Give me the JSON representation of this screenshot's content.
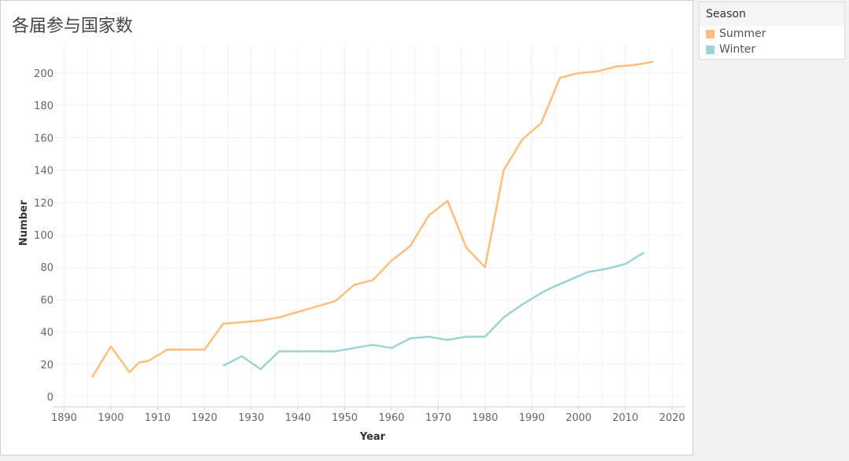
{
  "chart_data": {
    "type": "line",
    "title": "各届参与国家数",
    "xlabel": "Year",
    "ylabel": "Number",
    "xlim": [
      1886,
      2024
    ],
    "ylim": [
      -5,
      215
    ],
    "xticks": [
      1890,
      1900,
      1910,
      1920,
      1930,
      1940,
      1950,
      1960,
      1970,
      1980,
      1990,
      2000,
      2010,
      2020
    ],
    "yticks": [
      0,
      20,
      40,
      60,
      80,
      100,
      120,
      140,
      160,
      180,
      200
    ],
    "grid": true,
    "legend": {
      "title": "Season",
      "placement": "right"
    },
    "series": [
      {
        "name": "Summer",
        "color": "#ffbe7d",
        "x": [
          1896,
          1900,
          1904,
          1906,
          1908,
          1912,
          1920,
          1924,
          1928,
          1932,
          1936,
          1948,
          1952,
          1956,
          1960,
          1964,
          1968,
          1972,
          1976,
          1980,
          1984,
          1988,
          1992,
          1996,
          2000,
          2004,
          2008,
          2012,
          2016
        ],
        "y": [
          12,
          31,
          15,
          21,
          22,
          29,
          29,
          45,
          46,
          47,
          49,
          59,
          69,
          72,
          84,
          93,
          112,
          121,
          92,
          80,
          140,
          159,
          169,
          197,
          200,
          201,
          204,
          205,
          207
        ]
      },
      {
        "name": "Winter",
        "color": "#9dd3d3",
        "x": [
          1924,
          1928,
          1932,
          1936,
          1948,
          1952,
          1956,
          1960,
          1964,
          1968,
          1972,
          1976,
          1980,
          1984,
          1988,
          1992,
          1994,
          1998,
          2002,
          2006,
          2010,
          2014
        ],
        "y": [
          19,
          25,
          17,
          28,
          28,
          30,
          32,
          30,
          36,
          37,
          35,
          37,
          37,
          49,
          57,
          64,
          67,
          72,
          77,
          79,
          82,
          89
        ]
      }
    ]
  }
}
